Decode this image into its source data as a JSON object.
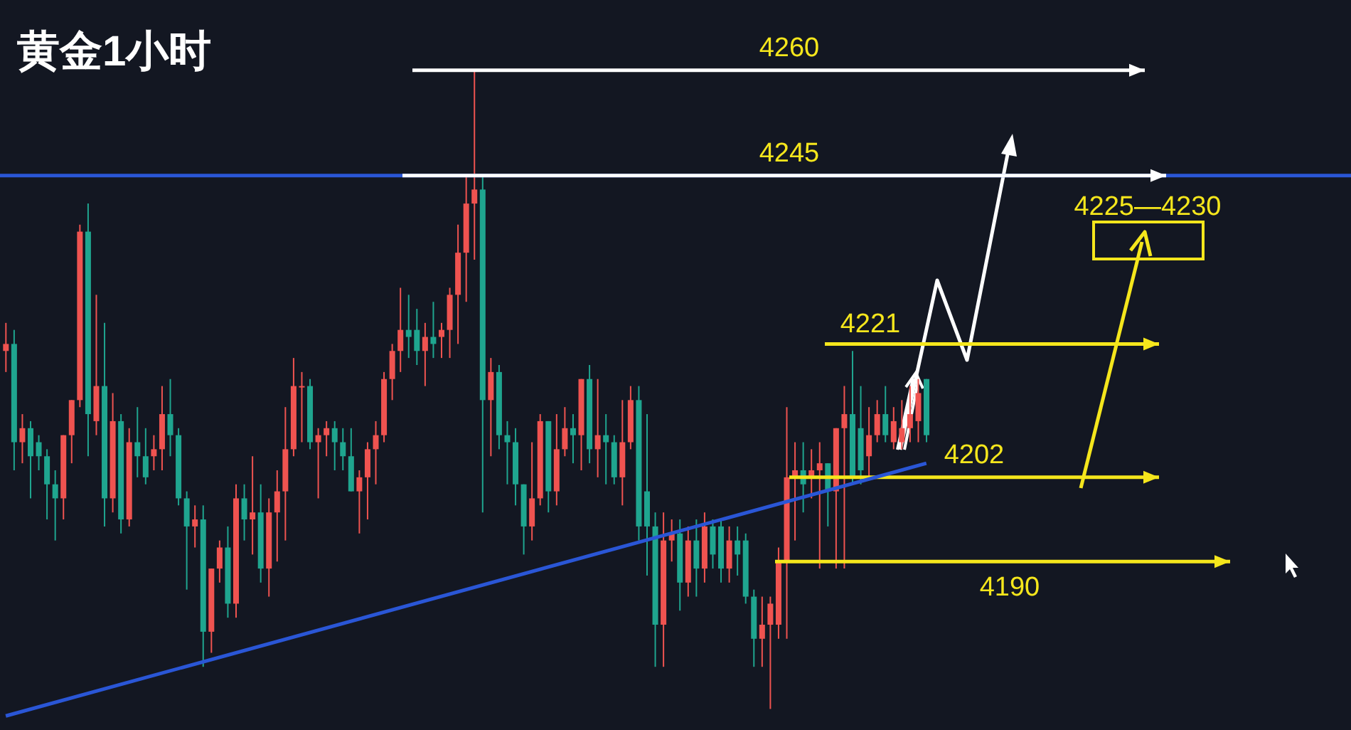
{
  "chart_data": {
    "type": "candlestick",
    "title": "黄金1小时",
    "tick_labels": false,
    "ylim": [
      4166,
      4270
    ],
    "categories": [
      null,
      null,
      null,
      null,
      null,
      null,
      null,
      null,
      null,
      null,
      null,
      null,
      null,
      null,
      null,
      null,
      null,
      null,
      null,
      null,
      null,
      null,
      null,
      null,
      null,
      null,
      null,
      null,
      null,
      null,
      null,
      null,
      null,
      null,
      null,
      null,
      null,
      null,
      null,
      null,
      null,
      null,
      null,
      null,
      null,
      null,
      null,
      null,
      null,
      null,
      null,
      null,
      null,
      null,
      null,
      null,
      null,
      null,
      null,
      null,
      null,
      null,
      null,
      null,
      null,
      null,
      null,
      null,
      null,
      null,
      null,
      null,
      null,
      null,
      null,
      null,
      null,
      null,
      null,
      null,
      null,
      null,
      null,
      null,
      null,
      null,
      null,
      null,
      null,
      null,
      null,
      null,
      null,
      null,
      null,
      null,
      null,
      null,
      null,
      null,
      null,
      null,
      null,
      null,
      null,
      null,
      null,
      null,
      null,
      null,
      null,
      null,
      null
    ],
    "ohlc": [
      [
        4220,
        4224,
        4217,
        4221
      ],
      [
        4221,
        4223,
        4203,
        4207
      ],
      [
        4207,
        4211,
        4204,
        4209
      ],
      [
        4209,
        4210,
        4199,
        4205
      ],
      [
        4207,
        4208,
        4203,
        4205
      ],
      [
        4205,
        4206,
        4196,
        4201
      ],
      [
        4201,
        4203,
        4193,
        4199
      ],
      [
        4199,
        4208,
        4196,
        4208
      ],
      [
        4208,
        4213,
        4204,
        4213
      ],
      [
        4213,
        4238,
        4212,
        4237
      ],
      [
        4237,
        4241,
        4205,
        4211
      ],
      [
        4210,
        4228,
        4208,
        4215
      ],
      [
        4215,
        4224,
        4195,
        4199
      ],
      [
        4199,
        4214,
        4197,
        4210
      ],
      [
        4210,
        4211,
        4194,
        4196
      ],
      [
        4196,
        4209,
        4195,
        4207
      ],
      [
        4207,
        4212,
        4202,
        4205
      ],
      [
        4205,
        4209,
        4201,
        4202
      ],
      [
        4205,
        4208,
        4203,
        4206
      ],
      [
        4206,
        4215,
        4203,
        4211
      ],
      [
        4211,
        4216,
        4205,
        4208
      ],
      [
        4208,
        4209,
        4198,
        4199
      ],
      [
        4199,
        4200,
        4186,
        4195
      ],
      [
        4195,
        4198,
        4192,
        4196
      ],
      [
        4196,
        4198,
        4175,
        4180
      ],
      [
        4180,
        4189,
        4177,
        4189
      ],
      [
        4189,
        4193,
        4187,
        4192
      ],
      [
        4192,
        4195,
        4182,
        4184
      ],
      [
        4184,
        4201,
        4182,
        4199
      ],
      [
        4199,
        4201,
        4193,
        4196
      ],
      [
        4196,
        4205,
        4191,
        4197
      ],
      [
        4197,
        4201,
        4187,
        4189
      ],
      [
        4189,
        4199,
        4185,
        4197
      ],
      [
        4197,
        4203,
        4190,
        4200
      ],
      [
        4200,
        4212,
        4193,
        4206
      ],
      [
        4206,
        4219,
        4205,
        4215
      ],
      [
        4215,
        4217,
        4207,
        4215
      ],
      [
        4215,
        4216,
        4206,
        4207
      ],
      [
        4207,
        4209,
        4199,
        4208
      ],
      [
        4208,
        4210,
        4205,
        4209
      ],
      [
        4209,
        4210,
        4203,
        4207
      ],
      [
        4207,
        4209,
        4203,
        4205
      ],
      [
        4205,
        4209,
        4200,
        4200
      ],
      [
        4200,
        4203,
        4194,
        4202
      ],
      [
        4202,
        4207,
        4196,
        4206
      ],
      [
        4206,
        4210,
        4201,
        4208
      ],
      [
        4208,
        4217,
        4207,
        4216
      ],
      [
        4216,
        4221,
        4213,
        4220
      ],
      [
        4220,
        4229,
        4217,
        4223
      ],
      [
        4223,
        4228,
        4219,
        4222
      ],
      [
        4223,
        4226,
        4218,
        4220
      ],
      [
        4220,
        4224,
        4215,
        4222
      ],
      [
        4222,
        4227,
        4219,
        4221
      ],
      [
        4222,
        4224,
        4219,
        4223
      ],
      [
        4223,
        4229,
        4219,
        4228
      ],
      [
        4228,
        4238,
        4221,
        4234
      ],
      [
        4234,
        4245,
        4227,
        4241
      ],
      [
        4241,
        4260,
        4233,
        4243
      ],
      [
        4243,
        4245,
        4197,
        4213
      ],
      [
        4213,
        4219,
        4205,
        4217
      ],
      [
        4217,
        4218,
        4206,
        4208
      ],
      [
        4208,
        4210,
        4201,
        4207
      ],
      [
        4207,
        4209,
        4198,
        4201
      ],
      [
        4201,
        4201,
        4191,
        4195
      ],
      [
        4195,
        4207,
        4193,
        4199
      ],
      [
        4199,
        4211,
        4198,
        4210
      ],
      [
        4210,
        4210,
        4197,
        4200
      ],
      [
        4200,
        4211,
        4198,
        4206
      ],
      [
        4206,
        4212,
        4205,
        4209
      ],
      [
        4209,
        4211,
        4204,
        4208
      ],
      [
        4208,
        4216,
        4203,
        4216
      ],
      [
        4216,
        4218,
        4204,
        4206
      ],
      [
        4206,
        4216,
        4202,
        4208
      ],
      [
        4208,
        4211,
        4201,
        4207
      ],
      [
        4207,
        4208,
        4201,
        4202
      ],
      [
        4202,
        4213,
        4198,
        4207
      ],
      [
        4207,
        4215,
        4206,
        4213
      ],
      [
        4213,
        4215,
        4193,
        4195
      ],
      [
        4200,
        4211,
        4188,
        4195
      ],
      [
        4195,
        4197,
        4175,
        4181
      ],
      [
        4181,
        4197,
        4175,
        4193
      ],
      [
        4193,
        4196,
        4190,
        4194
      ],
      [
        4194,
        4196,
        4183,
        4187
      ],
      [
        4187,
        4195,
        4185,
        4193
      ],
      [
        4193,
        4196,
        4185,
        4189
      ],
      [
        4189,
        4197,
        4187,
        4195
      ],
      [
        4195,
        4196,
        4189,
        4191
      ],
      [
        4195,
        4196,
        4187,
        4189
      ],
      [
        4189,
        4195,
        4187,
        4193
      ],
      [
        4193,
        4195,
        4188,
        4191
      ],
      [
        4193,
        4194,
        4184,
        4185
      ],
      [
        4185,
        4186,
        4175,
        4179
      ],
      [
        4179,
        4185,
        4175,
        4181
      ],
      [
        4181,
        4185,
        4169,
        4184
      ],
      [
        4181,
        4192,
        4179,
        4190
      ],
      [
        4190,
        4212,
        4179,
        4202
      ],
      [
        4202,
        4207,
        4193,
        4203
      ],
      [
        4203,
        4207,
        4197,
        4201
      ],
      [
        4202,
        4206,
        4199,
        4203
      ],
      [
        4203,
        4207,
        4189,
        4204
      ],
      [
        4204,
        4204,
        4195,
        4200
      ],
      [
        4200,
        4209,
        4189,
        4209
      ],
      [
        4209,
        4215,
        4189,
        4211
      ],
      [
        4211,
        4220,
        4201,
        4202
      ],
      [
        4209,
        4215,
        4201,
        4203
      ],
      [
        4205,
        4212,
        4202,
        4208
      ],
      [
        4208,
        4213,
        4207,
        4211
      ],
      [
        4211,
        4215,
        4207,
        4208
      ],
      [
        4207,
        4212,
        4206,
        4210
      ],
      [
        4207,
        4213,
        4206,
        4209
      ],
      [
        4209,
        4215,
        4207,
        4211
      ],
      [
        4210,
        4216,
        4207,
        4214
      ],
      [
        4216,
        4216,
        4207,
        4208
      ]
    ],
    "colors": [
      "#ef5350",
      "#1fa58f",
      "#ef5350",
      "#1fa58f",
      "#1fa58f",
      "#1fa58f",
      "#1fa58f",
      "#ef5350",
      "#ef5350",
      "#ef5350",
      "#1fa58f",
      "#ef5350",
      "#1fa58f",
      "#ef5350",
      "#1fa58f",
      "#ef5350",
      "#1fa58f",
      "#1fa58f",
      "#ef5350",
      "#ef5350",
      "#1fa58f",
      "#1fa58f",
      "#1fa58f",
      "#ef5350",
      "#1fa58f",
      "#ef5350",
      "#ef5350",
      "#1fa58f",
      "#ef5350",
      "#1fa58f",
      "#ef5350",
      "#1fa58f",
      "#ef5350",
      "#ef5350",
      "#ef5350",
      "#ef5350",
      "#ef5350",
      "#1fa58f",
      "#ef5350",
      "#ef5350",
      "#1fa58f",
      "#1fa58f",
      "#1fa58f",
      "#ef5350",
      "#ef5350",
      "#ef5350",
      "#ef5350",
      "#ef5350",
      "#ef5350",
      "#1fa58f",
      "#1fa58f",
      "#ef5350",
      "#1fa58f",
      "#ef5350",
      "#ef5350",
      "#ef5350",
      "#ef5350",
      "#ef5350",
      "#1fa58f",
      "#ef5350",
      "#1fa58f",
      "#1fa58f",
      "#1fa58f",
      "#1fa58f",
      "#ef5350",
      "#ef5350",
      "#1fa58f",
      "#ef5350",
      "#ef5350",
      "#1fa58f",
      "#ef5350",
      "#1fa58f",
      "#ef5350",
      "#1fa58f",
      "#1fa58f",
      "#ef5350",
      "#ef5350",
      "#1fa58f",
      "#1fa58f",
      "#1fa58f",
      "#ef5350",
      "#ef5350",
      "#1fa58f",
      "#ef5350",
      "#1fa58f",
      "#ef5350",
      "#1fa58f",
      "#1fa58f",
      "#ef5350",
      "#1fa58f",
      "#1fa58f",
      "#1fa58f",
      "#ef5350",
      "#ef5350",
      "#ef5350",
      "#ef5350",
      "#ef5350",
      "#1fa58f",
      "#ef5350",
      "#ef5350",
      "#1fa58f",
      "#ef5350",
      "#ef5350",
      "#1fa58f",
      "#1fa58f",
      "#ef5350",
      "#ef5350",
      "#1fa58f",
      "#ef5350",
      "#ef5350",
      "#ef5350",
      "#ef5350",
      "#1fa58f"
    ],
    "series": [
      {
        "type": "line",
        "color": "#2a56d6",
        "values": [
          4168,
          null,
          null,
          null,
          null,
          null,
          null,
          null,
          null,
          null,
          null,
          null,
          null,
          null,
          null,
          null,
          null,
          null,
          null,
          null,
          null,
          null,
          null,
          null,
          null,
          null,
          null,
          null,
          null,
          null,
          null,
          null,
          null,
          null,
          null,
          null,
          null,
          null,
          null,
          null,
          null,
          null,
          null,
          null,
          null,
          null,
          null,
          null,
          null,
          null,
          null,
          null,
          null,
          null,
          null,
          null,
          null,
          null,
          null,
          null,
          null,
          null,
          null,
          null,
          null,
          null,
          null,
          null,
          null,
          null,
          null,
          null,
          null,
          null,
          null,
          null,
          null,
          null,
          null,
          null,
          null,
          null,
          null,
          null,
          null,
          null,
          null,
          null,
          null,
          null,
          null,
          null,
          null,
          null,
          null,
          null,
          null,
          null,
          null,
          null,
          null,
          null,
          null,
          null,
          null,
          null,
          null,
          null,
          null,
          null,
          null,
          null,
          4204
        ]
      }
    ],
    "ref_lines": [
      {
        "axis": "y",
        "value": 4260,
        "label": "4260",
        "color": "#ffffff"
      },
      {
        "axis": "y",
        "value": 4245,
        "color": "#2a56d6"
      },
      {
        "axis": "y",
        "value": 4245,
        "label": "4245",
        "color": "#ffffff"
      },
      {
        "axis": "y",
        "value": 4221,
        "label": "4221",
        "color": "#f5e61c"
      },
      {
        "axis": "y",
        "value": 4202,
        "label": "4202",
        "color": "#f5e61c"
      },
      {
        "axis": "y",
        "value": 4190,
        "label": "4190",
        "color": "#f5e61c"
      }
    ],
    "annotations": [
      "4225—4230"
    ]
  }
}
